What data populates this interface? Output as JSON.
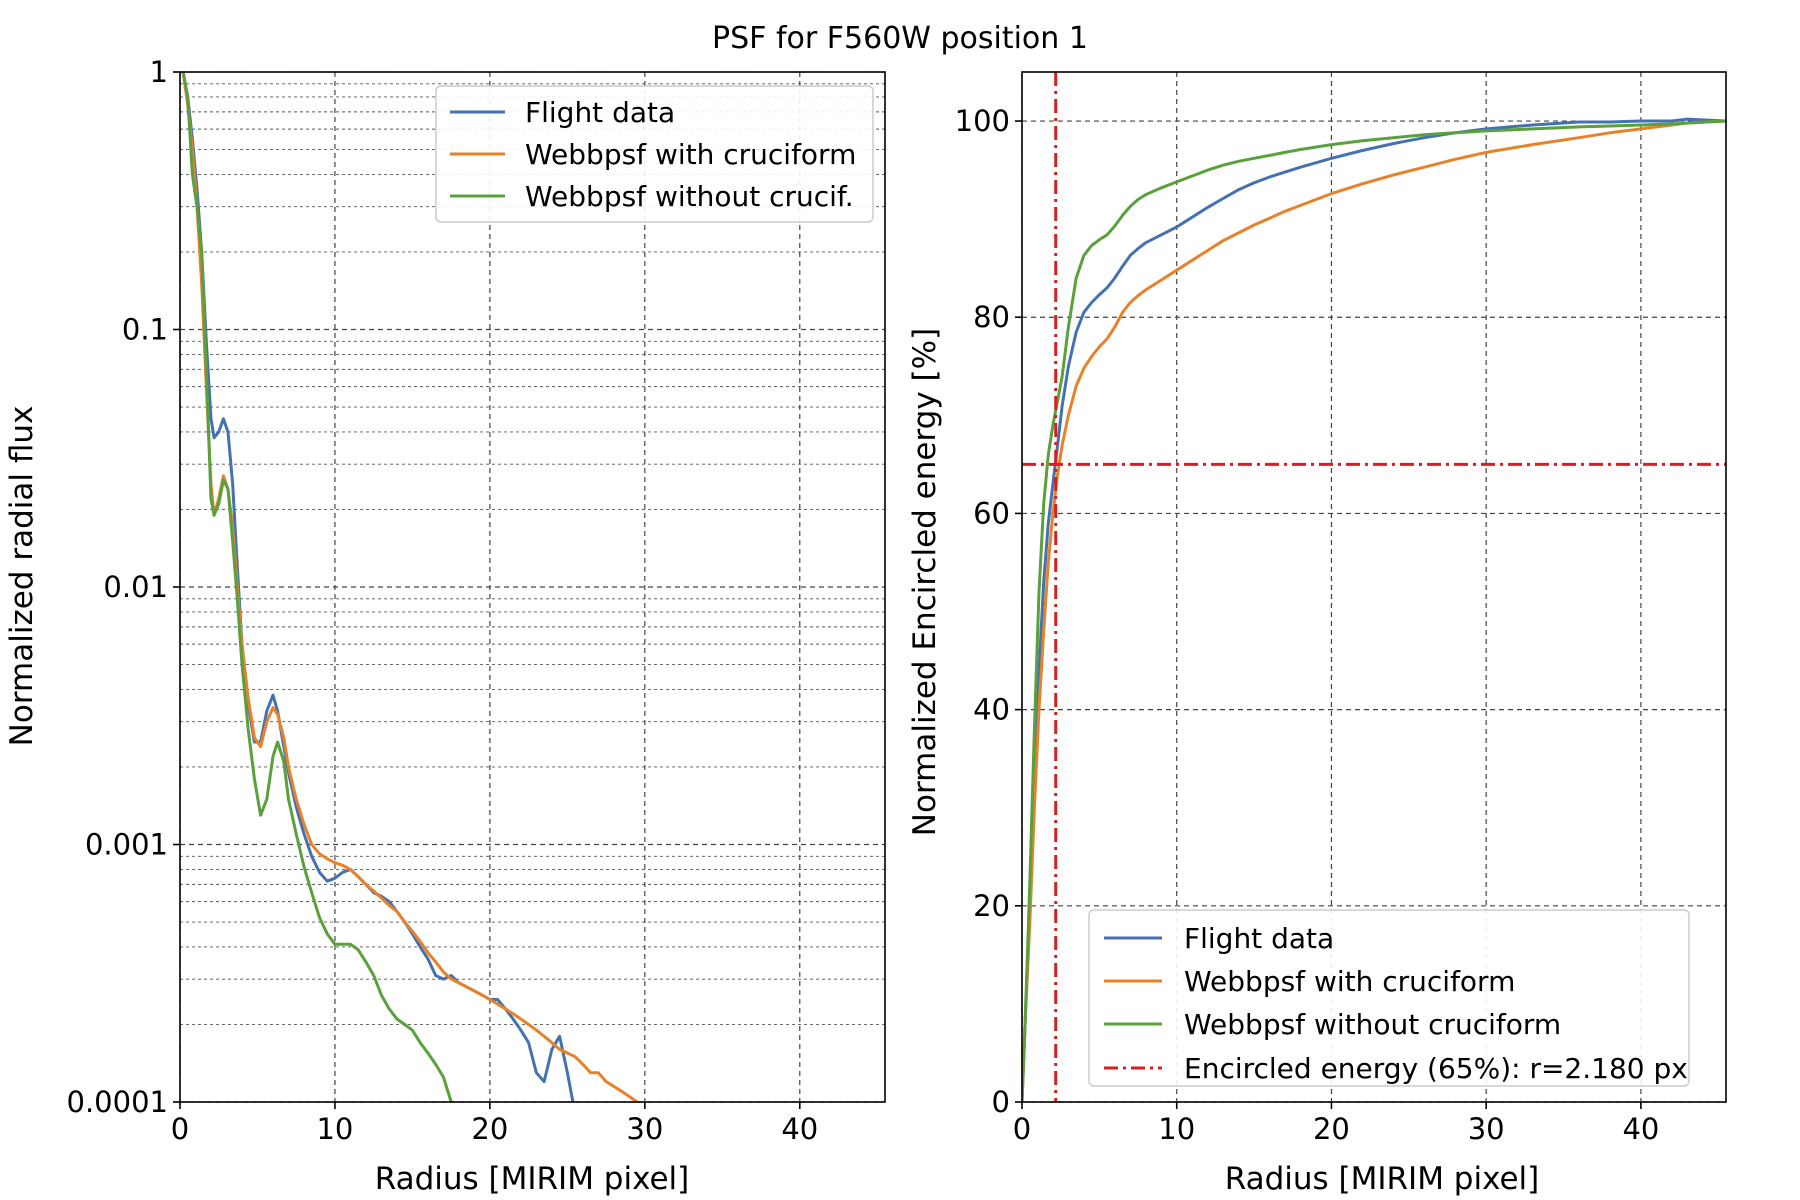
{
  "figure_title": "PSF for F560W position 1",
  "colors": {
    "flight": "#4472b0",
    "with_cruciform": "#e8822a",
    "without_cruciform": "#5aa03c",
    "threshold": "#d62020"
  },
  "chart_data": [
    {
      "type": "line",
      "yscale": "log",
      "xlabel": "Radius [MIRIM pixel]",
      "ylabel": "Normalized radial flux",
      "xlim": [
        0,
        45.5
      ],
      "ylim": [
        0.0001,
        1
      ],
      "xticks": [
        0,
        10,
        20,
        30,
        40
      ],
      "xtick_labels": [
        "0",
        "10",
        "20",
        "30",
        "40"
      ],
      "yticks": [
        1,
        0.1,
        0.01,
        0.001,
        0.0001
      ],
      "ytick_labels": [
        "1",
        "0.1",
        "0.01",
        "0.001",
        "0.0001"
      ],
      "grid": true,
      "legend_position": "top-right",
      "series": [
        {
          "name": "Flight data",
          "color_key": "flight",
          "x": [
            0.2,
            0.5,
            0.8,
            1.1,
            1.4,
            1.7,
            2.0,
            2.2,
            2.5,
            2.8,
            3.1,
            3.4,
            3.7,
            4.0,
            4.4,
            4.8,
            5.2,
            5.6,
            6.0,
            6.3,
            6.7,
            7.0,
            7.5,
            8.0,
            8.5,
            9.0,
            9.5,
            10.0,
            10.5,
            11.0,
            11.5,
            12.0,
            12.5,
            13.0,
            13.5,
            14.0,
            14.5,
            15.0,
            15.5,
            16.0,
            16.5,
            17.0,
            17.5,
            18.0,
            18.5,
            19.0,
            19.5,
            20.0,
            20.5,
            21.0,
            21.5,
            22.0,
            22.5,
            23.0,
            23.5,
            24.0,
            24.5,
            25.0,
            25.5,
            26.0
          ],
          "y": [
            1.0,
            0.8,
            0.55,
            0.35,
            0.2,
            0.09,
            0.045,
            0.038,
            0.04,
            0.045,
            0.04,
            0.025,
            0.012,
            0.006,
            0.0035,
            0.0025,
            0.0025,
            0.0033,
            0.0038,
            0.0033,
            0.0024,
            0.0019,
            0.0014,
            0.0011,
            0.0009,
            0.00078,
            0.00072,
            0.00074,
            0.00078,
            0.0008,
            0.00075,
            0.0007,
            0.00065,
            0.00063,
            0.0006,
            0.00055,
            0.0005,
            0.00045,
            0.0004,
            0.00036,
            0.00031,
            0.0003,
            0.00031,
            0.00029,
            0.00028,
            0.00027,
            0.00026,
            0.00025,
            0.00025,
            0.00023,
            0.00021,
            0.00019,
            0.00017,
            0.00013,
            0.00012,
            0.00016,
            0.00018,
            0.00013,
            9e-05,
            9e-05
          ]
        },
        {
          "name": "Webbpsf with cruciform",
          "color_key": "with_cruciform",
          "x": [
            0.2,
            0.5,
            0.8,
            1.1,
            1.4,
            1.7,
            2.0,
            2.2,
            2.5,
            2.8,
            3.1,
            3.4,
            3.7,
            4.0,
            4.4,
            4.8,
            5.2,
            5.6,
            6.0,
            6.3,
            6.7,
            7.0,
            7.5,
            8.0,
            8.5,
            9.0,
            9.5,
            10.0,
            10.5,
            11.0,
            11.5,
            12.0,
            12.5,
            13.0,
            13.5,
            14.0,
            14.5,
            15.0,
            15.5,
            16.0,
            16.5,
            17.0,
            17.5,
            18.0,
            18.5,
            19.0,
            19.5,
            20.0,
            20.5,
            21.0,
            21.5,
            22.0,
            22.5,
            23.0,
            23.5,
            24.0,
            24.5,
            25.0,
            25.5,
            26.0,
            26.5,
            27.0,
            27.5,
            28.0,
            28.5,
            29.0,
            29.5,
            30.0
          ],
          "y": [
            1.0,
            0.75,
            0.5,
            0.3,
            0.15,
            0.06,
            0.025,
            0.019,
            0.022,
            0.027,
            0.024,
            0.017,
            0.01,
            0.006,
            0.0037,
            0.0026,
            0.0024,
            0.003,
            0.0034,
            0.0032,
            0.0026,
            0.002,
            0.0015,
            0.0012,
            0.001,
            0.00092,
            0.00088,
            0.00085,
            0.00083,
            0.0008,
            0.00075,
            0.0007,
            0.00066,
            0.00062,
            0.00058,
            0.00055,
            0.0005,
            0.00046,
            0.00042,
            0.00038,
            0.00035,
            0.00032,
            0.0003,
            0.00029,
            0.00028,
            0.00027,
            0.00026,
            0.00025,
            0.00024,
            0.00023,
            0.00022,
            0.00021,
            0.0002,
            0.00019,
            0.00018,
            0.00017,
            0.00016,
            0.000155,
            0.00015,
            0.00014,
            0.00013,
            0.00013,
            0.00012,
            0.000115,
            0.00011,
            0.000105,
            0.0001,
            9e-05
          ]
        },
        {
          "name": "Webbpsf without crucif.",
          "color_key": "without_cruciform",
          "x": [
            0.2,
            0.5,
            0.8,
            1.1,
            1.4,
            1.7,
            2.0,
            2.2,
            2.5,
            2.8,
            3.1,
            3.4,
            3.7,
            4.0,
            4.4,
            4.8,
            5.2,
            5.6,
            6.0,
            6.3,
            6.7,
            7.0,
            7.5,
            8.0,
            8.5,
            9.0,
            9.5,
            10.0,
            10.5,
            11.0,
            11.5,
            12.0,
            12.5,
            13.0,
            13.5,
            14.0,
            14.5,
            15.0,
            15.5,
            16.0,
            16.5,
            17.0,
            17.5
          ],
          "y": [
            1.0,
            0.8,
            0.4,
            0.3,
            0.2,
            0.07,
            0.022,
            0.019,
            0.021,
            0.026,
            0.024,
            0.015,
            0.009,
            0.005,
            0.0028,
            0.0018,
            0.0013,
            0.0015,
            0.0022,
            0.0025,
            0.0021,
            0.0015,
            0.0011,
            0.00082,
            0.00065,
            0.00052,
            0.00045,
            0.00041,
            0.00041,
            0.00041,
            0.00039,
            0.00035,
            0.00031,
            0.00026,
            0.00023,
            0.00021,
            0.0002,
            0.00019,
            0.00017,
            0.000155,
            0.00014,
            0.000125,
            0.0001
          ]
        }
      ]
    },
    {
      "type": "line",
      "yscale": "linear",
      "xlabel": "Radius [MIRIM pixel]",
      "ylabel": "Normalized Encircled energy [%]",
      "xlim": [
        0,
        45.5
      ],
      "ylim": [
        0,
        105
      ],
      "xticks": [
        0,
        10,
        20,
        30,
        40
      ],
      "xtick_labels": [
        "0",
        "10",
        "20",
        "30",
        "40"
      ],
      "yticks": [
        0,
        20,
        40,
        60,
        80,
        100
      ],
      "ytick_labels": [
        "0",
        "20",
        "40",
        "60",
        "80",
        "100"
      ],
      "grid": true,
      "legend_position": "bottom-right",
      "series": [
        {
          "name": "Flight data",
          "color_key": "flight",
          "x": [
            0,
            0.2,
            0.5,
            0.8,
            1.1,
            1.4,
            1.7,
            2.0,
            2.3,
            2.6,
            3.0,
            3.5,
            4.0,
            4.5,
            5.0,
            5.5,
            6.0,
            6.5,
            7.0,
            7.5,
            8,
            9,
            10,
            11,
            12,
            13,
            14,
            15,
            16,
            17,
            18,
            20,
            22,
            24,
            26,
            28,
            30,
            33,
            36,
            38,
            40,
            42,
            43,
            45.5
          ],
          "y": [
            0,
            8,
            20,
            32,
            44,
            53,
            59,
            63,
            67,
            71,
            75,
            78.5,
            80.5,
            81.5,
            82.3,
            83,
            84,
            85.2,
            86.3,
            87,
            87.6,
            88.4,
            89.2,
            90.2,
            91.2,
            92.1,
            93,
            93.7,
            94.3,
            94.8,
            95.3,
            96.2,
            97,
            97.7,
            98.3,
            98.8,
            99.2,
            99.6,
            99.9,
            99.9,
            100,
            100,
            100.2,
            100
          ]
        },
        {
          "name": "Webbpsf with cruciform",
          "color_key": "with_cruciform",
          "x": [
            0,
            0.2,
            0.5,
            0.8,
            1.1,
            1.4,
            1.7,
            2.0,
            2.3,
            2.6,
            3.0,
            3.5,
            4.0,
            4.5,
            5.0,
            5.5,
            6.0,
            6.5,
            7.0,
            7.5,
            8,
            9,
            10,
            11,
            12,
            13,
            14,
            15,
            16,
            17,
            18,
            20,
            22,
            24,
            26,
            28,
            30,
            33,
            36,
            38,
            40,
            42,
            43,
            45.5
          ],
          "y": [
            0,
            8,
            18,
            30,
            40,
            48,
            55,
            60,
            64,
            67,
            70,
            73,
            74.8,
            76,
            77,
            77.8,
            79,
            80.5,
            81.5,
            82.2,
            82.8,
            83.8,
            84.8,
            85.8,
            86.8,
            87.8,
            88.6,
            89.4,
            90.1,
            90.8,
            91.4,
            92.6,
            93.6,
            94.5,
            95.3,
            96.1,
            96.8,
            97.6,
            98.3,
            98.8,
            99.2,
            99.6,
            99.8,
            100
          ]
        },
        {
          "name": "Webbpsf without cruciform",
          "color_key": "without_cruciform",
          "x": [
            0,
            0.2,
            0.5,
            0.8,
            1.1,
            1.4,
            1.7,
            2.0,
            2.3,
            2.6,
            3.0,
            3.5,
            4.0,
            4.5,
            5.0,
            5.5,
            6.0,
            6.5,
            7.0,
            7.5,
            8,
            9,
            10,
            11,
            12,
            13,
            14,
            15,
            16,
            17,
            18,
            20,
            22,
            24,
            26,
            28,
            30,
            33,
            36,
            38,
            40,
            42,
            43,
            45.5
          ],
          "y": [
            0,
            8,
            22,
            38,
            52,
            61,
            66,
            69,
            71.5,
            74,
            79,
            84,
            86.3,
            87.3,
            87.9,
            88.4,
            89.3,
            90.4,
            91.3,
            92,
            92.5,
            93.2,
            93.8,
            94.4,
            95,
            95.5,
            95.9,
            96.2,
            96.5,
            96.8,
            97.1,
            97.6,
            98,
            98.3,
            98.6,
            98.8,
            99,
            99.2,
            99.4,
            99.5,
            99.6,
            99.7,
            99.8,
            100
          ]
        }
      ],
      "reference_lines": {
        "name": "Encircled energy (65%): r=2.180 px",
        "color_key": "threshold",
        "x": 2.18,
        "y": 65
      },
      "legend": [
        "Flight data",
        "Webbpsf with cruciform",
        "Webbpsf without cruciform",
        "Encircled energy (65%): r=2.180 px"
      ]
    }
  ]
}
